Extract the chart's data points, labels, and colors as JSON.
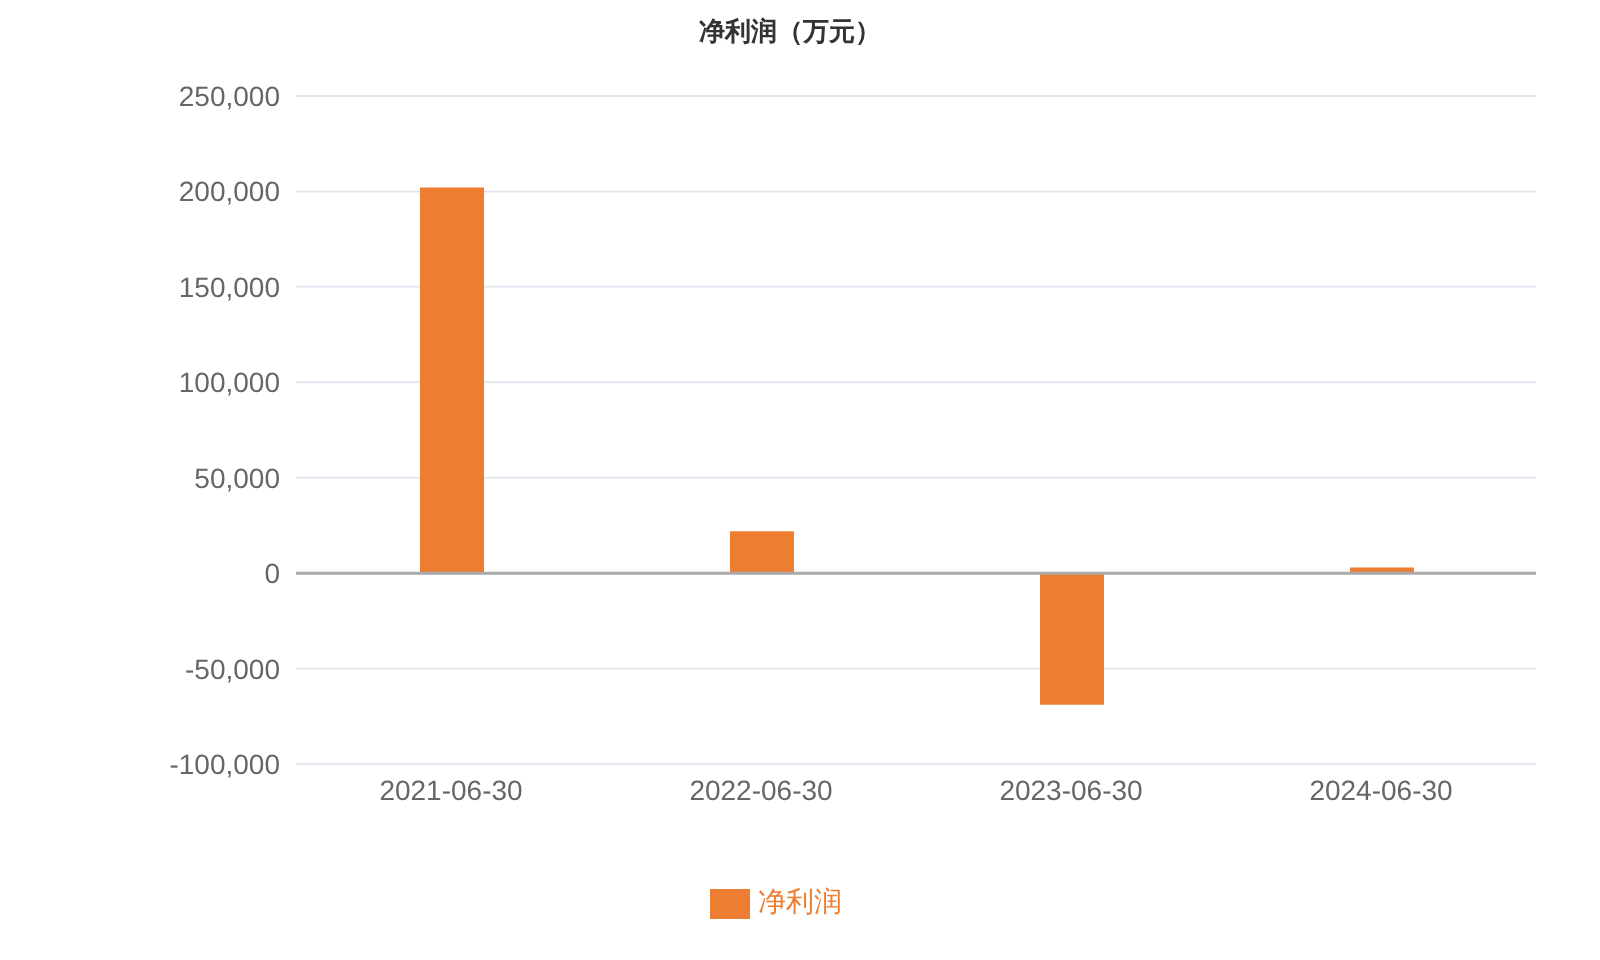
{
  "chart_data": {
    "type": "bar",
    "title": "净利润（万元）",
    "categories": [
      "2021-06-30",
      "2022-06-30",
      "2023-06-30",
      "2024-06-30"
    ],
    "series": [
      {
        "name": "净利润",
        "color": "#ed7d31",
        "values": [
          202000,
          22000,
          -69000,
          3000
        ]
      }
    ],
    "ylim": [
      -100000,
      250000
    ],
    "yticks": [
      {
        "value": -100000,
        "label": "-100,000"
      },
      {
        "value": -50000,
        "label": "-50,000"
      },
      0,
      {
        "value": 50000,
        "label": "50,000"
      },
      {
        "value": 100000,
        "label": "100,000"
      },
      {
        "value": 150000,
        "label": "150,000"
      },
      {
        "value": 200000,
        "label": "200,000"
      },
      {
        "value": 250000,
        "label": "250,000"
      }
    ],
    "grid": "y",
    "legend": "bottom"
  }
}
